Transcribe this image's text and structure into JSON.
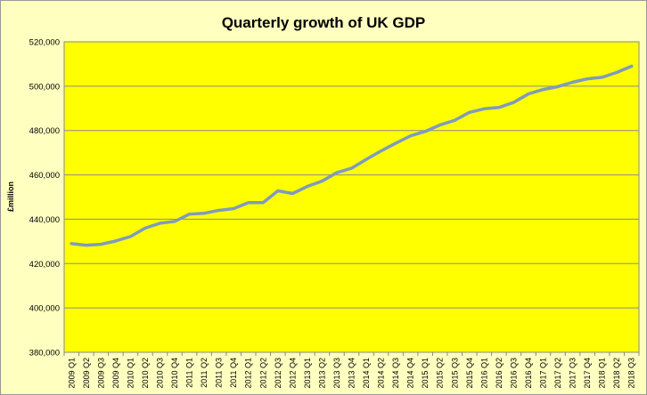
{
  "chart_data": {
    "type": "line",
    "title": "Quarterly growth of UK GDP",
    "ylabel": "£million",
    "xlabel": "",
    "ylim": [
      380000,
      520000
    ],
    "yticks": [
      380000,
      400000,
      420000,
      440000,
      460000,
      480000,
      500000,
      520000
    ],
    "ytick_labels": [
      "380,000",
      "400,000",
      "420,000",
      "440,000",
      "460,000",
      "480,000",
      "500,000",
      "520,000"
    ],
    "plot_background": "#ffff00",
    "page_background": "#ffffc0",
    "line_color": "#7f9bbd",
    "grid": true,
    "categories": [
      "2009 Q1",
      "2009 Q2",
      "2009 Q3",
      "2009 Q4",
      "2010 Q1",
      "2010 Q2",
      "2010 Q3",
      "2010 Q4",
      "2011 Q1",
      "2011 Q2",
      "2011 Q3",
      "2011 Q4",
      "2012 Q1",
      "2012 Q2",
      "2012 Q3",
      "2012 Q4",
      "2013 Q1",
      "2013 Q2",
      "2013 Q3",
      "2013 Q4",
      "2014 Q1",
      "2014 Q2",
      "2014 Q3",
      "2014 Q4",
      "2015 Q1",
      "2015 Q2",
      "2015 Q3",
      "2015 Q4",
      "2016 Q1",
      "2016 Q2",
      "2016 Q3",
      "2016 Q4",
      "2017 Q1",
      "2017 Q2",
      "2017 Q3",
      "2017 Q4",
      "2018 Q1",
      "2018 Q2",
      "2018 Q3"
    ],
    "series": [
      {
        "values": [
          429000,
          428300,
          428700,
          430200,
          432200,
          436000,
          438200,
          439000,
          442300,
          442700,
          444000,
          444800,
          447500,
          447500,
          452800,
          451600,
          454800,
          457200,
          461000,
          463000,
          467000,
          470800,
          474300,
          477600,
          479600,
          482500,
          484600,
          488200,
          489800,
          490400,
          492700,
          496500,
          498500,
          499800,
          501800,
          503300,
          504000,
          506200,
          509000
        ]
      }
    ]
  }
}
